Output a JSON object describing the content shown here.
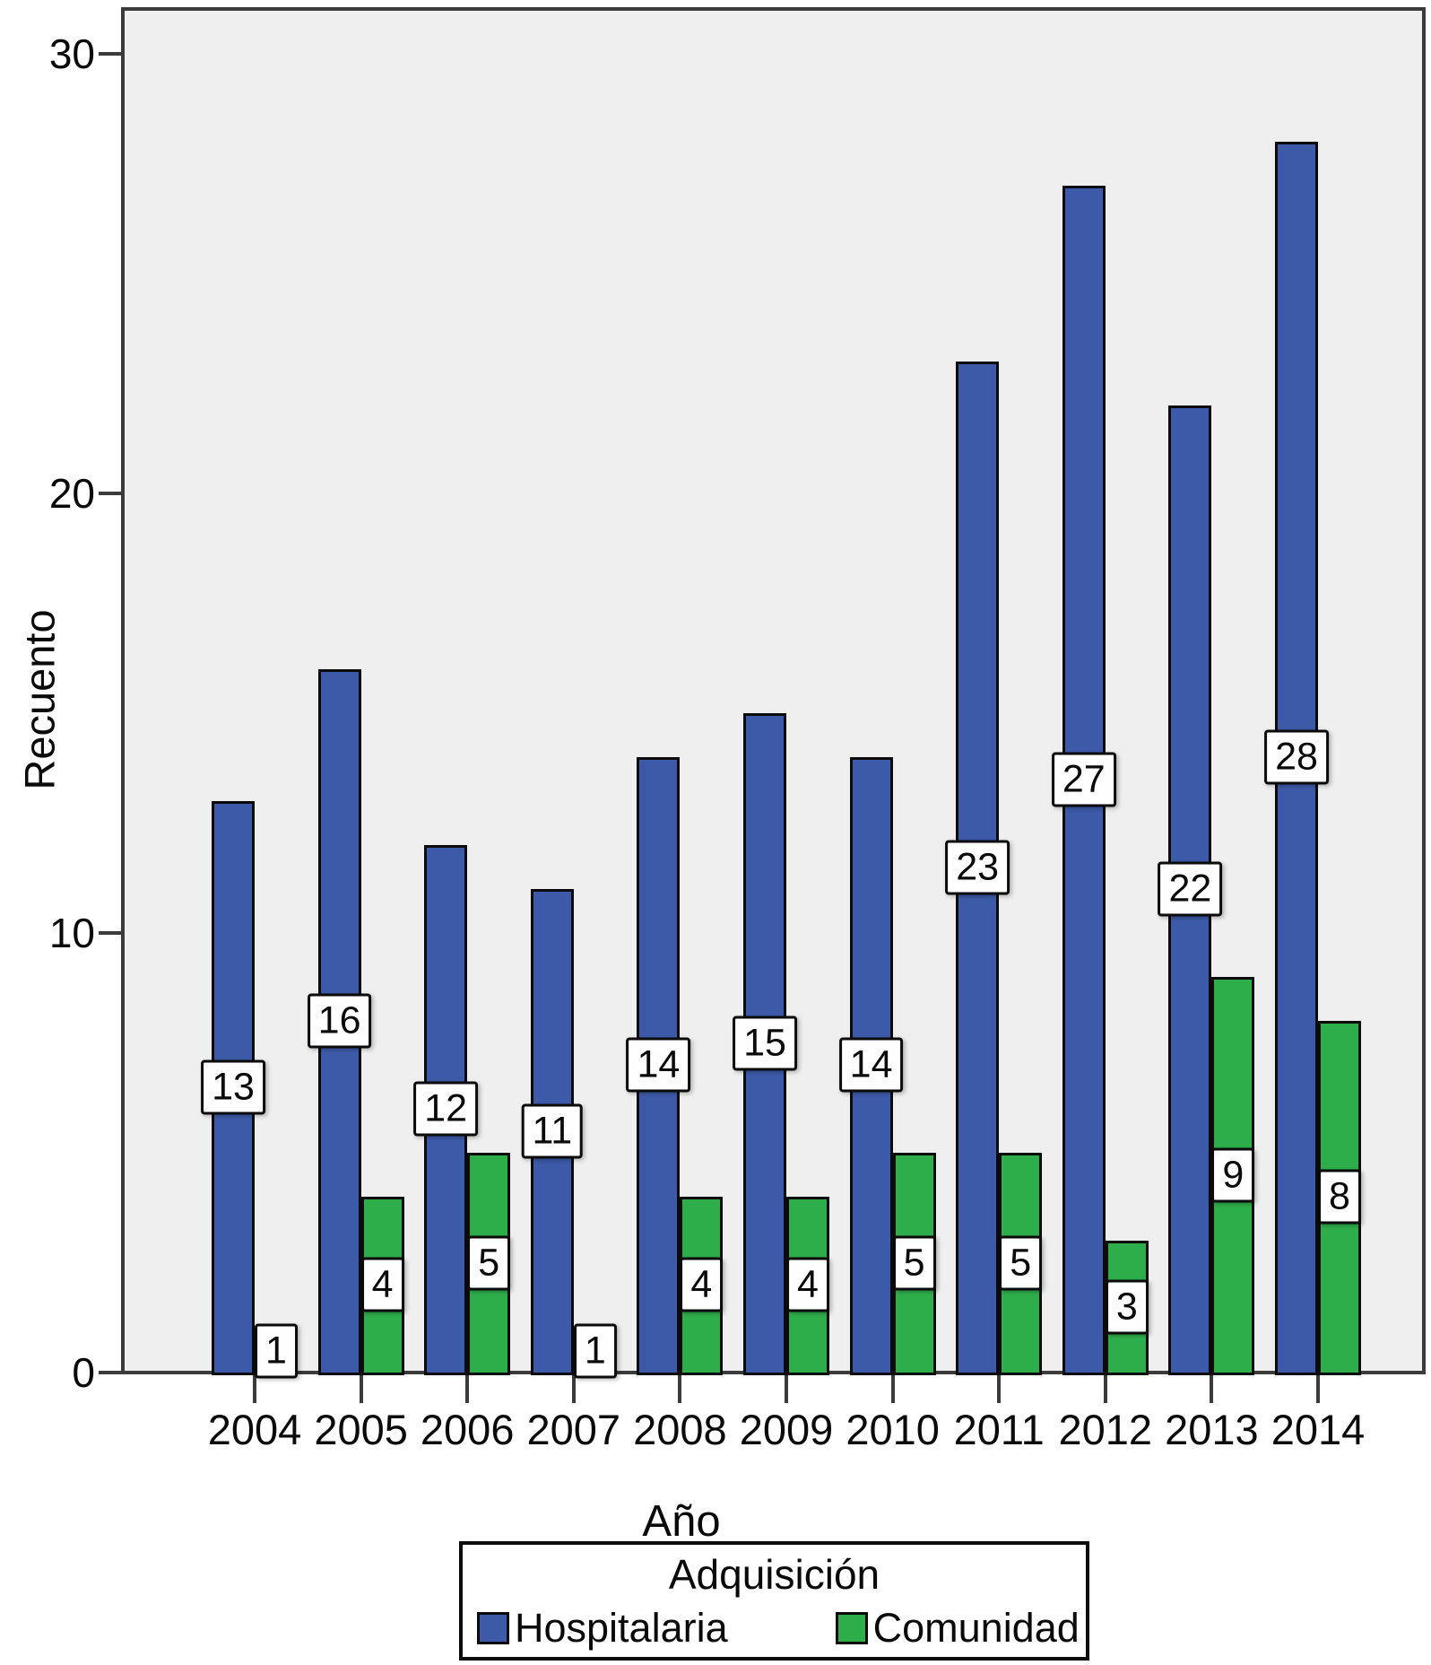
{
  "chart_data": {
    "type": "bar",
    "categories": [
      "2004",
      "2005",
      "2006",
      "2007",
      "2008",
      "2009",
      "2010",
      "2011",
      "2012",
      "2013",
      "2014"
    ],
    "series": [
      {
        "name": "Hospitalaria",
        "color": "#3d5aa8",
        "values": [
          13,
          16,
          12,
          11,
          14,
          15,
          14,
          23,
          27,
          22,
          28
        ]
      },
      {
        "name": "Comunidad",
        "color": "#2eae4b",
        "values": [
          1,
          4,
          5,
          1,
          4,
          4,
          5,
          5,
          3,
          9,
          8
        ]
      }
    ],
    "xlabel": "Año",
    "ylabel": "Recuento",
    "ylim": [
      0,
      30
    ],
    "yticks": [
      0,
      10,
      20,
      30
    ],
    "grid": false,
    "bar_value_labels": "centered on bar",
    "legend": {
      "title": "Adquisición",
      "position": "bottom"
    }
  },
  "colors": {
    "plot_background": "#efefef",
    "page_background": "#ffffff",
    "axis": "#3b3b3b",
    "bar_border": "#0b0b0b",
    "value_label_background": "#fefefe",
    "hospitalaria_blue": "#3d5aa8",
    "comunidad_green": "#2eae4b"
  }
}
